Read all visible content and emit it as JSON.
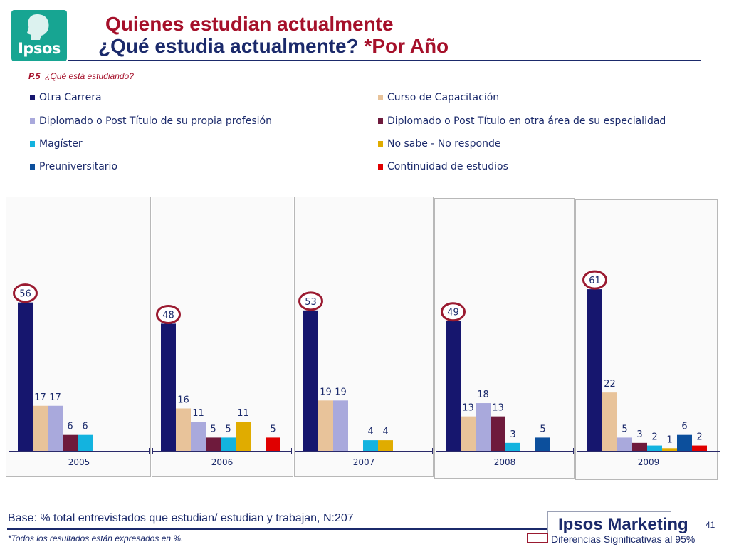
{
  "brand": {
    "logo_text": "Ipsos",
    "marketing": "Ipsos Marketing"
  },
  "header": {
    "title1": "Quienes estudian actualmente",
    "title2_a": "¿Qué estudia actualmente? ",
    "title2_b": "*Por Año",
    "question_code": "P.5",
    "question_text": "¿Qué está estudiando?"
  },
  "colors": {
    "Otra Carrera": "#16166e",
    "Curso de Capacitación": "#e8c39a",
    "Diplomado o Post Título de su propia profesión": "#a9a9dc",
    "Diplomado o Post Título en otra área de su especialidad": "#6e1a3c",
    "Magíster": "#13b3df",
    "No sabe - No responde": "#e0ac00",
    "Preuniversitario": "#0c4f9c",
    "Continuidad de estudios": "#e00000",
    "label": "#1b2a6b",
    "highlight_circle": "#9a1a30"
  },
  "chart_data": {
    "type": "bar",
    "categories": [
      "2005",
      "2006",
      "2007",
      "2008",
      "2009"
    ],
    "series": [
      {
        "name": "Otra Carrera",
        "values": [
          56,
          48,
          53,
          49,
          61
        ]
      },
      {
        "name": "Curso de Capacitación",
        "values": [
          17,
          16,
          19,
          13,
          22
        ]
      },
      {
        "name": "Diplomado o Post Título de su propia profesión",
        "values": [
          17,
          11,
          19,
          18,
          5
        ]
      },
      {
        "name": "Diplomado o Post Título en otra área de su especialidad",
        "values": [
          6,
          5,
          null,
          13,
          3
        ]
      },
      {
        "name": "Magíster",
        "values": [
          6,
          5,
          4,
          3,
          2
        ]
      },
      {
        "name": "No sabe - No responde",
        "values": [
          null,
          11,
          4,
          null,
          1
        ]
      },
      {
        "name": "Preuniversitario",
        "values": [
          null,
          null,
          null,
          5,
          6
        ]
      },
      {
        "name": "Continuidad de estudios",
        "values": [
          null,
          5,
          null,
          null,
          2
        ]
      }
    ],
    "highlighted_series": "Otra Carrera",
    "ylim": [
      0,
      66
    ],
    "grid": false,
    "legend_position": "top"
  },
  "footer": {
    "base": "Base: % total entrevistados que estudian/ estudian y trabajan, N:207",
    "note": "*Todos los resultados están expresados en %.",
    "significance": "Diferencias Significativas al 95%",
    "page": "41"
  }
}
